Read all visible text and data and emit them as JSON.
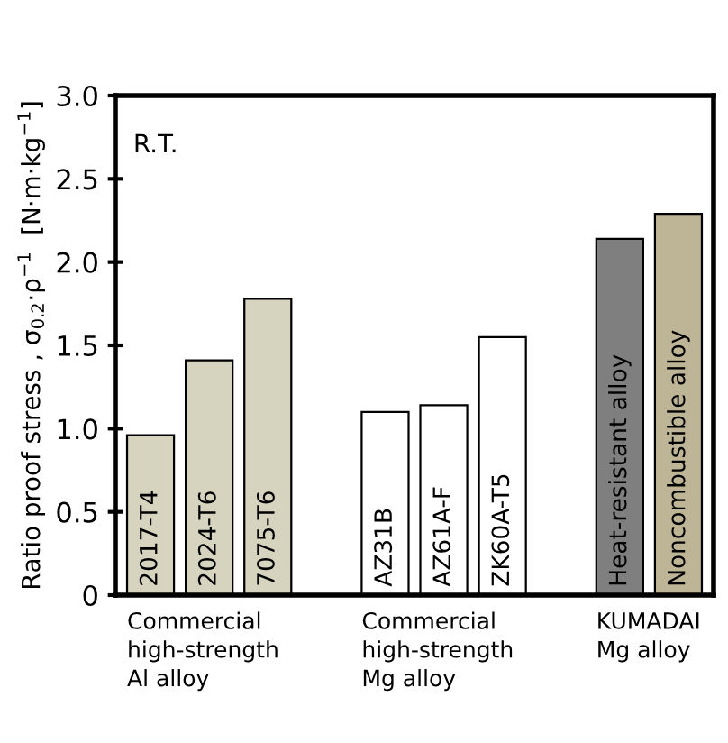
{
  "chart_data": {
    "type": "bar",
    "ylabel": "Ratio proof stress , σ$_{0.2}$·ρ$^{−1}$  [N·m·kg$^{−1}$]",
    "categories": [
      "2017-T4",
      "2024-T6",
      "7075-T6",
      null,
      "AZ31B",
      "AZ61A-F",
      "ZK60A-T5",
      null,
      "Heat-resistant alloy",
      "Noncombustible alloy"
    ],
    "values": [
      0.96,
      1.41,
      1.78,
      null,
      1.1,
      1.14,
      1.55,
      null,
      2.14,
      2.29
    ],
    "colors": [
      "#d6d3bf",
      "#d6d3bf",
      "#d6d3bf",
      "#ffffff",
      "#ffffff",
      "#ffffff",
      "#ffffff",
      "#ffffff",
      "#7f7f7f",
      "#bdb595"
    ],
    "ylim": [
      0,
      3.0
    ],
    "yticks": [
      0,
      {
        "value": 0.5,
        "label": "0.5"
      },
      {
        "value": 1,
        "label": "1.0"
      },
      {
        "value": 1.5,
        "label": "1.5"
      },
      {
        "value": 2,
        "label": "2.0"
      },
      {
        "value": 2.5,
        "label": "2.5"
      },
      {
        "value": 3,
        "label": "3.0"
      }
    ],
    "annotations": [
      "R.T.",
      "Commercial\nhigh-strength\nAl alloy",
      "Commercial\nhigh-strength\nMg alloy",
      "KUMADAI\nMg alloy"
    ],
    "grid": false,
    "legend": false
  }
}
